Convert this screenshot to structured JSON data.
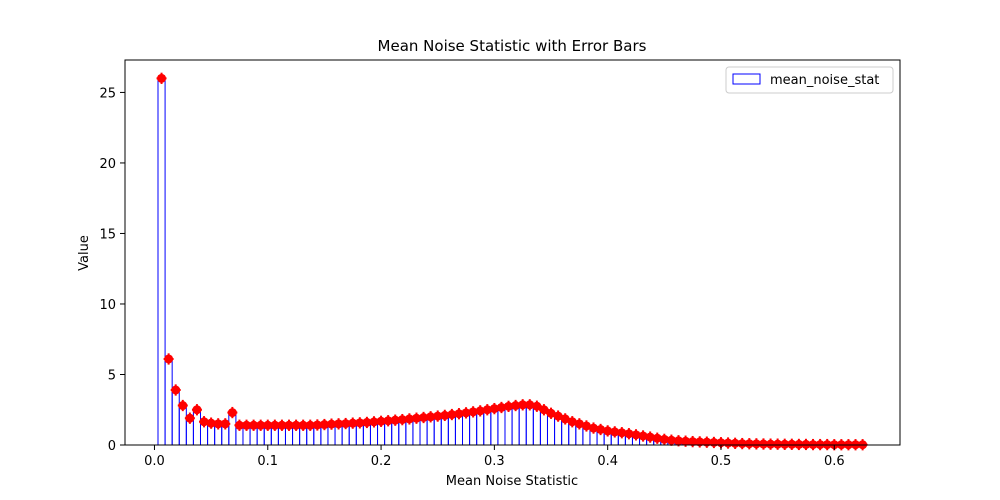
{
  "chart_data": {
    "type": "bar",
    "title": "Mean Noise Statistic with Error Bars",
    "xlabel": "Mean Noise Statistic",
    "ylabel": "Value",
    "xlim": [
      -0.026,
      0.658
    ],
    "ylim": [
      0,
      27.3
    ],
    "xticks": [
      0.0,
      0.1,
      0.2,
      0.3,
      0.4,
      0.5,
      0.6
    ],
    "xtick_labels": [
      "0.0",
      "0.1",
      "0.2",
      "0.3",
      "0.4",
      "0.5",
      "0.6"
    ],
    "yticks": [
      0,
      5,
      10,
      15,
      20,
      25
    ],
    "ytick_labels": [
      "0",
      "5",
      "10",
      "15",
      "20",
      "25"
    ],
    "bar_width": 0.00625,
    "legend": {
      "label": "mean_noise_stat",
      "position": "upper right"
    },
    "bar_edge_color": "#0000ff",
    "marker_color": "#ff0000",
    "errorbar_halfwidth": 0.4,
    "x": [
      0.00625,
      0.0125,
      0.01875,
      0.025,
      0.03125,
      0.0375,
      0.04375,
      0.05,
      0.05625,
      0.0625,
      0.06875,
      0.075,
      0.08125,
      0.0875,
      0.09375,
      0.1,
      0.10625,
      0.1125,
      0.11875,
      0.125,
      0.13125,
      0.1375,
      0.14375,
      0.15,
      0.15625,
      0.1625,
      0.16875,
      0.175,
      0.18125,
      0.1875,
      0.19375,
      0.2,
      0.20625,
      0.2125,
      0.21875,
      0.225,
      0.23125,
      0.2375,
      0.24375,
      0.25,
      0.25625,
      0.2625,
      0.26875,
      0.275,
      0.28125,
      0.2875,
      0.29375,
      0.3,
      0.30625,
      0.3125,
      0.31875,
      0.325,
      0.33125,
      0.3375,
      0.34375,
      0.35,
      0.35625,
      0.3625,
      0.36875,
      0.375,
      0.38125,
      0.3875,
      0.39375,
      0.4,
      0.40625,
      0.4125,
      0.41875,
      0.425,
      0.43125,
      0.4375,
      0.44375,
      0.45,
      0.45625,
      0.4625,
      0.46875,
      0.475,
      0.48125,
      0.4875,
      0.49375,
      0.5,
      0.50625,
      0.5125,
      0.51875,
      0.525,
      0.53125,
      0.5375,
      0.54375,
      0.55,
      0.55625,
      0.5625,
      0.56875,
      0.575,
      0.58125,
      0.5875,
      0.59375,
      0.6,
      0.60625,
      0.6125,
      0.61875,
      0.625
    ],
    "values": [
      26.0,
      6.1,
      3.9,
      2.8,
      1.9,
      2.5,
      1.65,
      1.55,
      1.5,
      1.5,
      2.3,
      1.4,
      1.4,
      1.4,
      1.4,
      1.4,
      1.4,
      1.4,
      1.4,
      1.4,
      1.4,
      1.4,
      1.42,
      1.45,
      1.48,
      1.5,
      1.52,
      1.55,
      1.57,
      1.6,
      1.64,
      1.68,
      1.72,
      1.76,
      1.8,
      1.85,
      1.9,
      1.95,
      2.0,
      2.05,
      2.1,
      2.16,
      2.22,
      2.28,
      2.35,
      2.42,
      2.5,
      2.58,
      2.66,
      2.74,
      2.8,
      2.85,
      2.85,
      2.75,
      2.5,
      2.25,
      2.05,
      1.85,
      1.65,
      1.5,
      1.35,
      1.2,
      1.1,
      1.0,
      0.93,
      0.87,
      0.8,
      0.72,
      0.64,
      0.56,
      0.48,
      0.4,
      0.34,
      0.3,
      0.27,
      0.24,
      0.22,
      0.2,
      0.18,
      0.16,
      0.14,
      0.12,
      0.1,
      0.09,
      0.08,
      0.07,
      0.06,
      0.06,
      0.05,
      0.05,
      0.04,
      0.04,
      0.03,
      0.03,
      0.03,
      0.02,
      0.02,
      0.02,
      0.02,
      0.02
    ]
  }
}
